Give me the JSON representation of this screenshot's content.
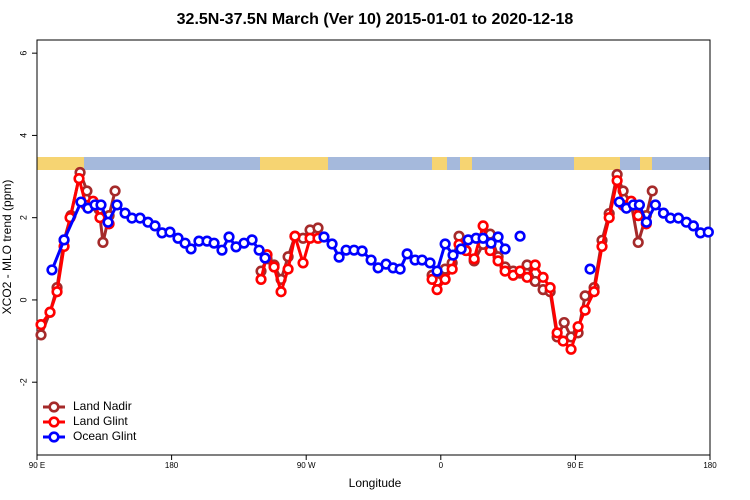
{
  "chart_data": {
    "type": "line",
    "title": "32.5N-37.5N March (Ver 10)   2015-01-01 to 2020-12-18",
    "xlabel": "Longitude",
    "ylabel": "XCO2 - MLO trend (ppm)",
    "xlim": [
      90,
      540
    ],
    "xticks": [
      {
        "value": 90,
        "label": "90 E"
      },
      {
        "value": 180,
        "label": "180"
      },
      {
        "value": 270,
        "label": "90 W"
      },
      {
        "value": 360,
        "label": "0"
      },
      {
        "value": 450,
        "label": "90 E"
      },
      {
        "value": 540,
        "label": "180"
      }
    ],
    "ylim": [
      -3.77,
      6.32
    ],
    "yticks": [
      -2,
      0,
      2,
      4,
      6
    ],
    "legend": "bottom-left",
    "series": [
      {
        "name": "Land Nadir",
        "color": "#a52a2a",
        "x": [
          92.7,
          98.7,
          103.4,
          108.1,
          112.7,
          118.8,
          123.4,
          127.5,
          131.5,
          134.1,
          138.2,
          142.2,
          null,
          239.8,
          243.8,
          248.5,
          253.2,
          257.9,
          262.5,
          267.9,
          272.6,
          277.9,
          null,
          354.2,
          357.5,
          362.9,
          367.6,
          372.2,
          376.9,
          382.3,
          388.3,
          393.0,
          398.3,
          403.0,
          408.4,
          413.0,
          417.7,
          423.1,
          428.4,
          433.1,
          437.8,
          442.5,
          447.1,
          451.8,
          456.5,
          462.5,
          467.8,
          472.6,
          477.9,
          481.9,
          487.3,
          492.0,
          497.4,
          501.4
        ],
        "values": [
          -0.85,
          -0.3,
          0.3,
          1.45,
          2.05,
          3.1,
          2.65,
          2.3,
          2.2,
          1.4,
          2.05,
          2.65,
          null,
          0.7,
          1.0,
          0.85,
          0.5,
          1.05,
          1.55,
          1.5,
          1.7,
          1.75,
          null,
          0.6,
          0.45,
          0.75,
          0.9,
          1.55,
          1.2,
          0.95,
          1.35,
          1.6,
          1.05,
          0.8,
          0.7,
          0.65,
          0.85,
          0.45,
          0.25,
          0.2,
          -0.9,
          -0.55,
          -0.9,
          -0.8,
          0.1,
          0.3,
          1.45,
          2.1,
          3.05,
          2.65,
          2.35,
          1.4,
          2.05,
          2.65
        ]
      },
      {
        "name": "Land Glint",
        "color": "#ff0000",
        "x": [
          92.7,
          98.7,
          103.4,
          108.1,
          112.1,
          118.1,
          122.8,
          127.5,
          132.1,
          138.2,
          null,
          239.8,
          243.8,
          248.5,
          253.2,
          257.9,
          262.5,
          267.9,
          272.6,
          277.9,
          null,
          354.2,
          357.5,
          362.9,
          367.6,
          372.2,
          376.9,
          382.3,
          388.3,
          393.0,
          398.3,
          403.0,
          408.4,
          413.0,
          417.7,
          423.1,
          428.4,
          433.1,
          437.8,
          441.8,
          447.1,
          451.8,
          456.5,
          462.5,
          467.8,
          472.6,
          477.9,
          481.9,
          487.3,
          492.0,
          497.4
        ],
        "values": [
          -0.6,
          -0.3,
          0.2,
          1.3,
          2.0,
          2.95,
          2.3,
          2.4,
          2.0,
          1.85,
          null,
          0.5,
          1.1,
          0.8,
          0.2,
          0.75,
          1.55,
          0.9,
          1.5,
          1.5,
          null,
          0.5,
          0.25,
          0.5,
          0.75,
          1.35,
          1.2,
          1.0,
          1.8,
          1.2,
          0.95,
          0.7,
          0.6,
          0.7,
          0.55,
          0.85,
          0.55,
          0.3,
          -0.8,
          -1.0,
          -1.2,
          -0.65,
          -0.25,
          0.2,
          1.3,
          2.0,
          2.9,
          2.3,
          2.4,
          2.05,
          1.85
        ]
      },
      {
        "name": "Ocean Glint",
        "color": "#0000ff",
        "x": [
          100.0,
          108.1,
          119.4,
          124.1,
          128.8,
          132.8,
          137.5,
          143.5,
          148.9,
          153.5,
          158.9,
          164.2,
          168.9,
          173.6,
          178.9,
          184.3,
          189.0,
          193.0,
          198.3,
          203.7,
          208.4,
          213.7,
          218.4,
          223.1,
          228.4,
          233.8,
          238.5,
          242.5,
          null,
          281.9,
          287.3,
          292.0,
          296.7,
          302.0,
          307.4,
          313.4,
          318.1,
          323.4,
          328.1,
          332.8,
          337.5,
          342.8,
          347.5,
          352.8,
          357.5,
          362.9,
          368.2,
          373.6,
          378.3,
          383.6,
          388.3,
          393.6,
          398.3,
          403.0,
          null,
          413.0,
          null,
          459.8,
          null,
          479.4,
          484.1,
          488.8,
          492.8,
          497.5,
          503.5,
          508.9,
          513.5,
          518.9,
          524.2,
          528.9,
          533.6,
          538.9
        ],
        "values": [
          0.73,
          1.46,
          2.38,
          2.23,
          2.31,
          2.31,
          1.89,
          2.31,
          2.11,
          1.99,
          1.99,
          1.89,
          1.8,
          1.63,
          1.65,
          1.5,
          1.38,
          1.24,
          1.43,
          1.43,
          1.38,
          1.21,
          1.53,
          1.29,
          1.38,
          1.46,
          1.21,
          1.02,
          null,
          1.53,
          1.36,
          1.04,
          1.21,
          1.21,
          1.19,
          0.97,
          0.78,
          0.87,
          0.78,
          0.75,
          1.12,
          0.97,
          0.97,
          0.9,
          0.7,
          1.36,
          1.09,
          1.24,
          1.46,
          1.5,
          1.5,
          1.38,
          1.53,
          1.24,
          null,
          1.55,
          null,
          0.75,
          null,
          2.38,
          2.23,
          2.31,
          2.31,
          1.89,
          2.31,
          2.11,
          1.99,
          1.99,
          1.89,
          1.8,
          1.63,
          1.65
        ]
      }
    ]
  }
}
